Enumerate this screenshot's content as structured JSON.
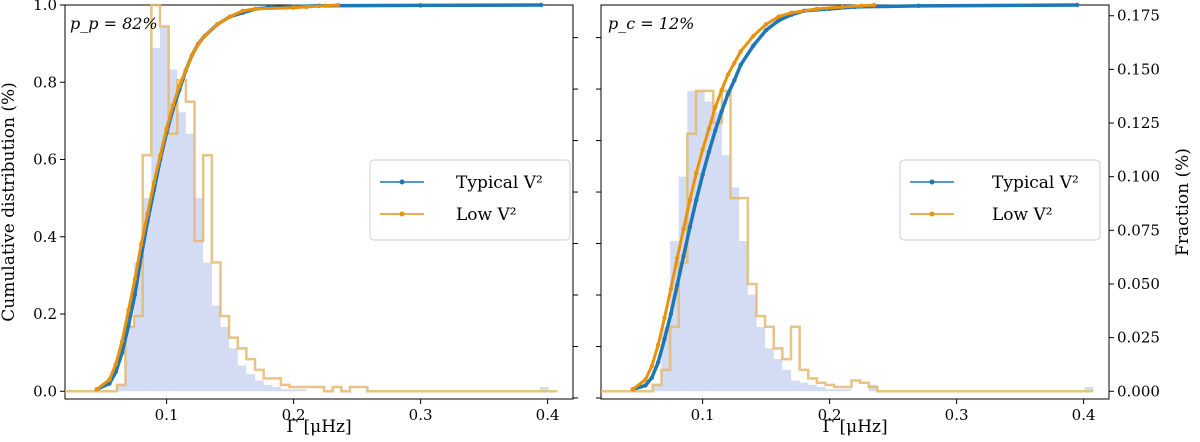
{
  "colors": {
    "typical": "#1f77b4",
    "low": "#e8920f",
    "hist_fill": "#c8d3f0",
    "hist_step": "#e4b96d"
  },
  "chart_data": [
    {
      "type": "line",
      "panel": "left",
      "annotation": "p_p = 82%",
      "xlabel": "Γ [μHz]",
      "ylabel": "Cumulative distribution (%)",
      "xlim": [
        0.02,
        0.42
      ],
      "ylim": [
        -0.02,
        1.0
      ],
      "xticks": [
        "0.1",
        "0.2",
        "0.3",
        "0.4"
      ],
      "yticks": [
        "0.0",
        "0.2",
        "0.4",
        "0.6",
        "0.8",
        "1.0"
      ],
      "legend": {
        "placement": "center-right",
        "entries": [
          "Typical V²",
          "Low V²"
        ]
      },
      "hist_left": {
        "bin_width": 0.0068,
        "start": 0.02,
        "values": [
          0,
          0,
          0,
          0,
          0,
          0,
          0.003,
          0.03,
          0.06,
          0.09,
          0.16,
          0.17,
          0.15,
          0.13,
          0.12,
          0.09,
          0.06,
          0.04,
          0.03,
          0.02,
          0.012,
          0.008,
          0.005,
          0.003,
          0.002,
          0.001,
          0.001,
          0.001,
          0,
          0,
          0,
          0,
          0,
          0,
          0,
          0,
          0,
          0,
          0,
          0,
          0,
          0,
          0,
          0,
          0,
          0,
          0,
          0,
          0,
          0,
          0,
          0,
          0,
          0,
          0,
          0.002,
          0
        ]
      },
      "hist_step": {
        "bin_width": 0.0068,
        "start": 0.02,
        "values": [
          0,
          0,
          0,
          0,
          0,
          0,
          0.003,
          0.03,
          0.035,
          0.11,
          0.18,
          0.17,
          0.12,
          0.145,
          0.135,
          0.07,
          0.11,
          0.06,
          0.035,
          0.025,
          0.02,
          0.015,
          0.01,
          0.006,
          0.006,
          0.003,
          0.002,
          0.002,
          0.002,
          0.002,
          0,
          0.002,
          0,
          0.002,
          0.002,
          0,
          0,
          0,
          0,
          0,
          0,
          0,
          0,
          0,
          0,
          0,
          0,
          0,
          0,
          0,
          0,
          0,
          0,
          0,
          0,
          0,
          0
        ]
      },
      "series": [
        {
          "name": "Typical V²",
          "x": [
            0.045,
            0.055,
            0.06,
            0.065,
            0.07,
            0.075,
            0.08,
            0.085,
            0.09,
            0.095,
            0.1,
            0.105,
            0.11,
            0.115,
            0.12,
            0.125,
            0.13,
            0.14,
            0.15,
            0.16,
            0.17,
            0.18,
            0.2,
            0.22,
            0.3,
            0.395
          ],
          "y": [
            0.005,
            0.02,
            0.05,
            0.1,
            0.17,
            0.25,
            0.35,
            0.44,
            0.52,
            0.6,
            0.67,
            0.73,
            0.78,
            0.83,
            0.87,
            0.9,
            0.92,
            0.95,
            0.97,
            0.98,
            0.99,
            0.993,
            0.996,
            0.998,
            0.999,
            1.0
          ]
        },
        {
          "name": "Low V²",
          "x": [
            0.045,
            0.055,
            0.06,
            0.065,
            0.07,
            0.075,
            0.08,
            0.085,
            0.09,
            0.095,
            0.1,
            0.105,
            0.11,
            0.115,
            0.12,
            0.125,
            0.13,
            0.14,
            0.15,
            0.16,
            0.17,
            0.2,
            0.21,
            0.225,
            0.235
          ],
          "y": [
            0.005,
            0.03,
            0.07,
            0.13,
            0.21,
            0.29,
            0.38,
            0.46,
            0.54,
            0.61,
            0.68,
            0.74,
            0.79,
            0.83,
            0.87,
            0.9,
            0.92,
            0.95,
            0.97,
            0.985,
            0.99,
            0.993,
            0.995,
            0.998,
            1.0
          ]
        }
      ]
    },
    {
      "type": "line",
      "panel": "right",
      "annotation": "p_c = 12%",
      "xlabel": "Γ [μHz]",
      "ylabel": "Fraction (%)",
      "xlim": [
        0.02,
        0.42
      ],
      "ylim": [
        -0.0036,
        0.18
      ],
      "xticks": [
        "0.1",
        "0.2",
        "0.3",
        "0.4"
      ],
      "yticks": [
        "0.000",
        "0.025",
        "0.050",
        "0.075",
        "0.100",
        "0.125",
        "0.150",
        "0.175"
      ],
      "legend": {
        "placement": "center-right",
        "entries": [
          "Typical V²",
          "Low V²"
        ]
      },
      "hist_left": {
        "bin_width": 0.0068,
        "start": 0.02,
        "values": [
          0,
          0,
          0,
          0,
          0,
          0,
          0.003,
          0.03,
          0.07,
          0.1,
          0.14,
          0.14,
          0.135,
          0.13,
          0.11,
          0.095,
          0.07,
          0.045,
          0.03,
          0.02,
          0.015,
          0.01,
          0.005,
          0.004,
          0.003,
          0.002,
          0.001,
          0.001,
          0.001,
          0,
          0,
          0.003,
          0,
          0,
          0,
          0,
          0,
          0,
          0,
          0,
          0,
          0,
          0,
          0,
          0,
          0,
          0,
          0,
          0,
          0,
          0,
          0,
          0,
          0,
          0,
          0,
          0.002,
          0
        ]
      },
      "hist_step": {
        "bin_width": 0.0068,
        "start": 0.02,
        "values": [
          0,
          0,
          0,
          0,
          0,
          0,
          0.003,
          0.01,
          0.03,
          0.06,
          0.12,
          0.14,
          0.14,
          0.125,
          0.14,
          0.09,
          0.09,
          0.05,
          0.035,
          0.03,
          0.02,
          0.015,
          0.03,
          0.01,
          0.006,
          0.004,
          0.003,
          0.002,
          0.002,
          0.005,
          0.004,
          0.002,
          0,
          0,
          0,
          0,
          0,
          0,
          0,
          0,
          0,
          0,
          0,
          0,
          0,
          0,
          0,
          0,
          0,
          0,
          0,
          0,
          0,
          0,
          0,
          0,
          0
        ]
      },
      "series": [
        {
          "name": "Typical V²",
          "x": [
            0.045,
            0.055,
            0.06,
            0.065,
            0.07,
            0.075,
            0.08,
            0.085,
            0.09,
            0.095,
            0.1,
            0.105,
            0.11,
            0.115,
            0.12,
            0.125,
            0.13,
            0.14,
            0.15,
            0.16,
            0.17,
            0.18,
            0.2,
            0.22,
            0.27,
            0.395
          ],
          "y": [
            0.0009,
            0.0027,
            0.0063,
            0.0135,
            0.0243,
            0.036,
            0.0495,
            0.063,
            0.0765,
            0.0891,
            0.1008,
            0.1116,
            0.1215,
            0.1305,
            0.1386,
            0.1449,
            0.1521,
            0.1611,
            0.1683,
            0.1728,
            0.1755,
            0.1773,
            0.1782,
            0.1791,
            0.1796,
            0.18
          ]
        },
        {
          "name": "Low V²",
          "x": [
            0.045,
            0.055,
            0.06,
            0.065,
            0.07,
            0.075,
            0.08,
            0.085,
            0.09,
            0.095,
            0.1,
            0.105,
            0.11,
            0.115,
            0.12,
            0.125,
            0.13,
            0.14,
            0.15,
            0.16,
            0.17,
            0.19,
            0.21,
            0.225,
            0.235
          ],
          "y": [
            0.0009,
            0.0054,
            0.0117,
            0.0216,
            0.0342,
            0.0477,
            0.0621,
            0.0756,
            0.0891,
            0.1017,
            0.1125,
            0.1224,
            0.1323,
            0.1404,
            0.1476,
            0.153,
            0.1584,
            0.1656,
            0.171,
            0.1746,
            0.1764,
            0.1782,
            0.1791,
            0.1796,
            0.18
          ]
        }
      ]
    }
  ]
}
